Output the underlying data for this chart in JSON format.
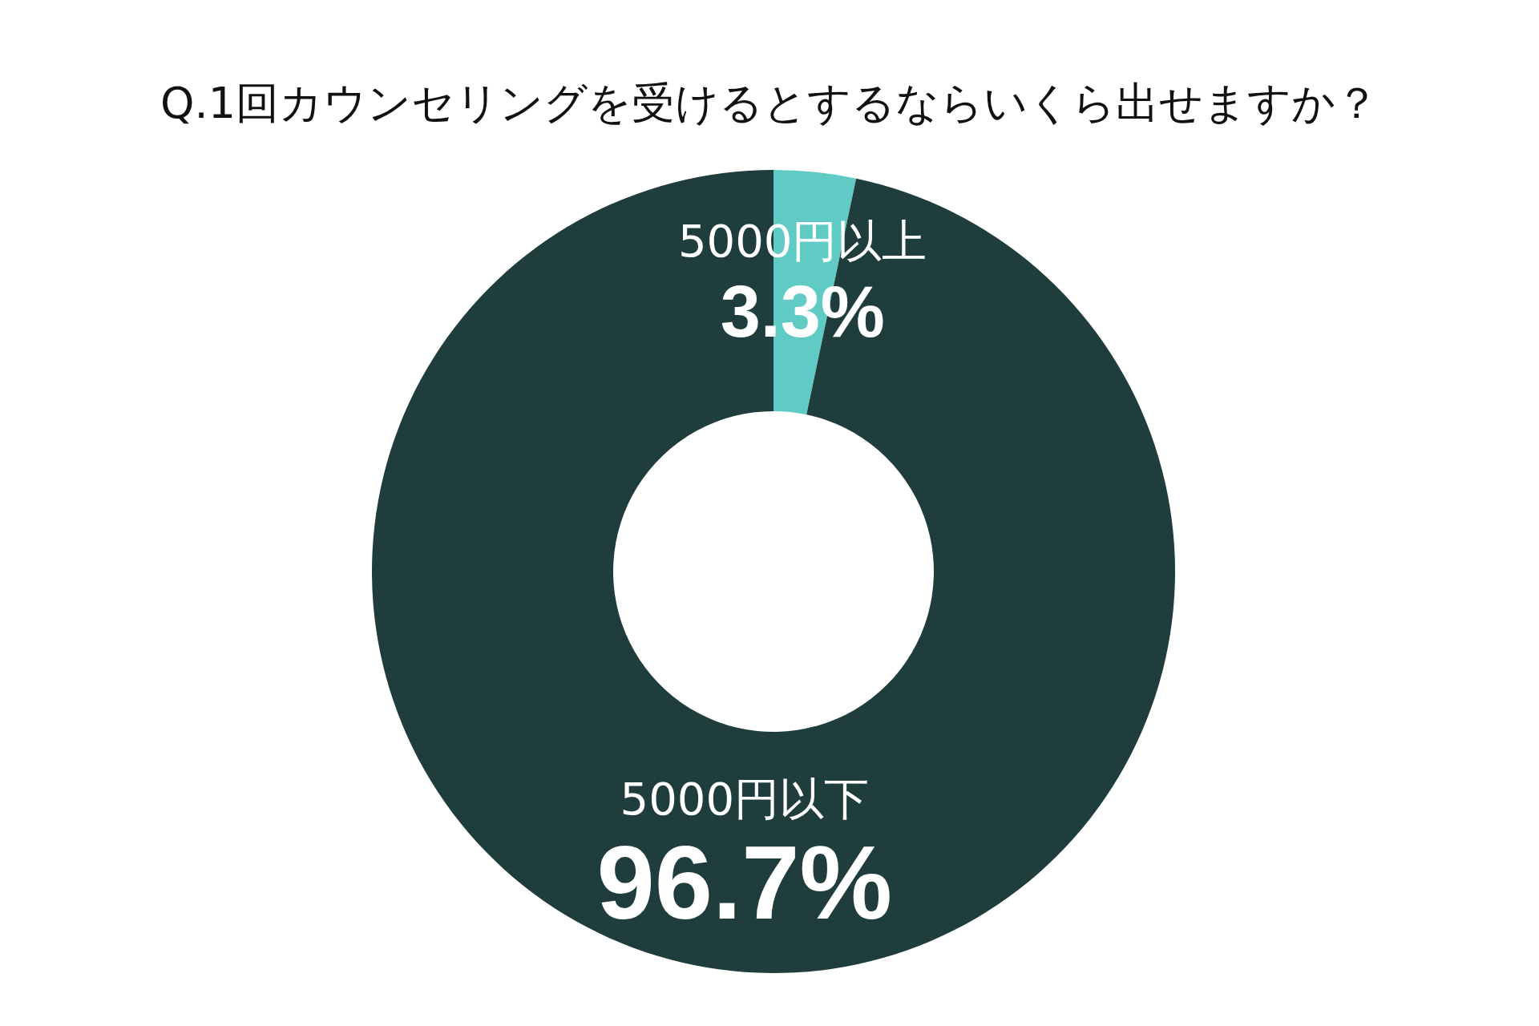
{
  "chart_data": {
    "type": "donut",
    "title": "Q.1回カウンセリングを受けるとするならいくら出せますか？",
    "categories": [
      "5000円以上",
      "5000円以下"
    ],
    "values": [
      3.3,
      96.7
    ],
    "colors": [
      "#5fcbc4",
      "#1f3d3c"
    ],
    "value_labels": [
      "3.3%",
      "96.7%"
    ]
  }
}
